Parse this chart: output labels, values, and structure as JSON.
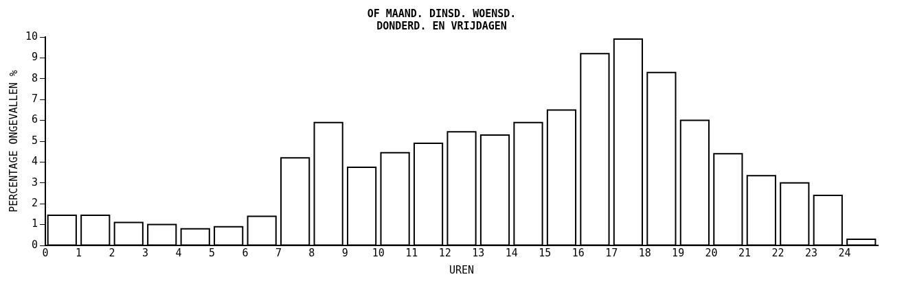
{
  "chart_data": {
    "type": "histogram",
    "title": "OF MAAND. DINSD. WOENSD.\nDONDERD. EN VRIJDAGEN",
    "xlabel": "UREN",
    "ylabel": "PERCENTAGE ONGEVALLEN %",
    "bins": [
      0,
      1,
      2,
      3,
      4,
      5,
      6,
      7,
      8,
      9,
      10,
      11,
      12,
      13,
      14,
      15,
      16,
      17,
      18,
      19,
      20,
      21,
      22,
      23,
      24,
      25
    ],
    "values": [
      1.45,
      1.45,
      1.1,
      1.0,
      0.8,
      0.9,
      1.4,
      4.2,
      5.9,
      3.75,
      4.45,
      4.9,
      5.45,
      5.3,
      5.9,
      6.5,
      9.2,
      9.9,
      8.3,
      6.0,
      4.4,
      3.35,
      3.0,
      2.4,
      0.3
    ],
    "color": "#000000",
    "xlim": [
      0,
      25
    ],
    "xticks": [
      0,
      1,
      2,
      3,
      4,
      5,
      6,
      7,
      8,
      9,
      10,
      11,
      12,
      13,
      14,
      15,
      16,
      17,
      18,
      19,
      20,
      21,
      22,
      23,
      24
    ],
    "ylim": [
      0,
      10
    ],
    "yticks": [
      0,
      1,
      2,
      3,
      4,
      5,
      6,
      7,
      8,
      9,
      10
    ],
    "grid": false
  }
}
